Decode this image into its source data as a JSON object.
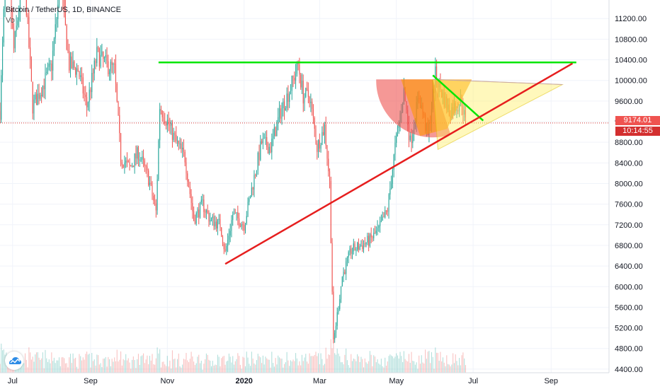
{
  "legend": {
    "title": "Bitcoin / TetherUS, 1D, BINANCE",
    "volume_label": "Vo"
  },
  "price_badges": {
    "last_price": "9174.01",
    "countdown": "10:14:55"
  },
  "colors": {
    "up": "#26a69a",
    "down": "#ef5350",
    "green_line": "#00e600",
    "red_line": "#e61e1e",
    "price_line": "#d32f2f",
    "fan_red": "#ef5350",
    "fan_orange": "#ff9800",
    "fan_yellow": "#ffee58"
  },
  "chart_data": {
    "type": "candlestick",
    "title": "Bitcoin / TetherUS, 1D, BINANCE",
    "y_axis": {
      "ticks": [
        4400,
        4800,
        5200,
        5600,
        6000,
        6400,
        6800,
        7200,
        7600,
        8000,
        8400,
        8800,
        9200,
        9600,
        10000,
        10400,
        10800,
        11200
      ],
      "tick_labels": [
        "4400.00",
        "4800.00",
        "5200.00",
        "5600.00",
        "6000.00",
        "6400.00",
        "6800.00",
        "7200.00",
        "7600.00",
        "8000.00",
        "8400.00",
        "8800.00",
        "9200.00",
        "9600.00",
        "10000.00",
        "10400.00",
        "10800.00",
        "11200.00"
      ],
      "range": [
        4330,
        11560
      ]
    },
    "x_axis": {
      "tick_labels": [
        "Jul",
        "Sep",
        "Nov",
        "2020",
        "Mar",
        "May",
        "Jul",
        "Sep"
      ],
      "tick_dates": [
        "2019-07-01",
        "2019-09-01",
        "2019-11-01",
        "2020-01-01",
        "2020-03-01",
        "2020-05-01",
        "2020-07-01",
        "2020-09-01"
      ],
      "range": [
        "2019-06-21",
        "2020-10-17"
      ]
    },
    "last_price": 9174.01,
    "price_path": [
      [
        "2019-06-21",
        9400
      ],
      [
        "2019-06-26",
        12500
      ],
      [
        "2019-07-02",
        10600
      ],
      [
        "2019-07-10",
        12200
      ],
      [
        "2019-07-17",
        9500
      ],
      [
        "2019-07-25",
        9900
      ],
      [
        "2019-08-01",
        10300
      ],
      [
        "2019-08-08",
        11900
      ],
      [
        "2019-08-15",
        10300
      ],
      [
        "2019-08-22",
        10200
      ],
      [
        "2019-08-29",
        9500
      ],
      [
        "2019-09-06",
        10500
      ],
      [
        "2019-09-14",
        10300
      ],
      [
        "2019-09-20",
        10200
      ],
      [
        "2019-09-25",
        8500
      ],
      [
        "2019-10-02",
        8300
      ],
      [
        "2019-10-09",
        8600
      ],
      [
        "2019-10-17",
        8100
      ],
      [
        "2019-10-23",
        7450
      ],
      [
        "2019-10-26",
        9500
      ],
      [
        "2019-11-01",
        9200
      ],
      [
        "2019-11-08",
        8800
      ],
      [
        "2019-11-15",
        8500
      ],
      [
        "2019-11-22",
        7300
      ],
      [
        "2019-11-29",
        7600
      ],
      [
        "2019-12-05",
        7300
      ],
      [
        "2019-12-13",
        7200
      ],
      [
        "2019-12-17",
        6650
      ],
      [
        "2019-12-23",
        7400
      ],
      [
        "2020-01-01",
        7200
      ],
      [
        "2020-01-08",
        8000
      ],
      [
        "2020-01-15",
        8800
      ],
      [
        "2020-01-22",
        8700
      ],
      [
        "2020-01-30",
        9400
      ],
      [
        "2020-02-06",
        9800
      ],
      [
        "2020-02-13",
        10300
      ],
      [
        "2020-02-17",
        9700
      ],
      [
        "2020-02-22",
        9700
      ],
      [
        "2020-02-28",
        8700
      ],
      [
        "2020-03-05",
        9100
      ],
      [
        "2020-03-09",
        8000
      ],
      [
        "2020-03-12",
        4900
      ],
      [
        "2020-03-19",
        6200
      ],
      [
        "2020-03-26",
        6700
      ],
      [
        "2020-04-03",
        6800
      ],
      [
        "2020-04-10",
        6900
      ],
      [
        "2020-04-17",
        7100
      ],
      [
        "2020-04-24",
        7500
      ],
      [
        "2020-04-30",
        8700
      ],
      [
        "2020-05-07",
        9800
      ],
      [
        "2020-05-12",
        8800
      ],
      [
        "2020-05-19",
        9700
      ],
      [
        "2020-05-26",
        8900
      ],
      [
        "2020-06-01",
        10100
      ],
      [
        "2020-06-07",
        9700
      ],
      [
        "2020-06-12",
        9400
      ],
      [
        "2020-06-17",
        9500
      ],
      [
        "2020-06-22",
        9600
      ],
      [
        "2020-06-25",
        9174
      ]
    ],
    "drawings": {
      "resistance_line": {
        "color": "green",
        "points": [
          [
            "2019-10-25",
            10350
          ],
          [
            "2020-09-21",
            10350
          ]
        ]
      },
      "support_trendline": {
        "color": "red",
        "points": [
          [
            "2019-12-17",
            6440
          ],
          [
            "2020-09-18",
            10330
          ]
        ]
      },
      "short_green_line": {
        "color": "green",
        "points": [
          [
            "2020-05-30",
            10100
          ],
          [
            "2020-07-09",
            9220
          ]
        ]
      }
    }
  }
}
